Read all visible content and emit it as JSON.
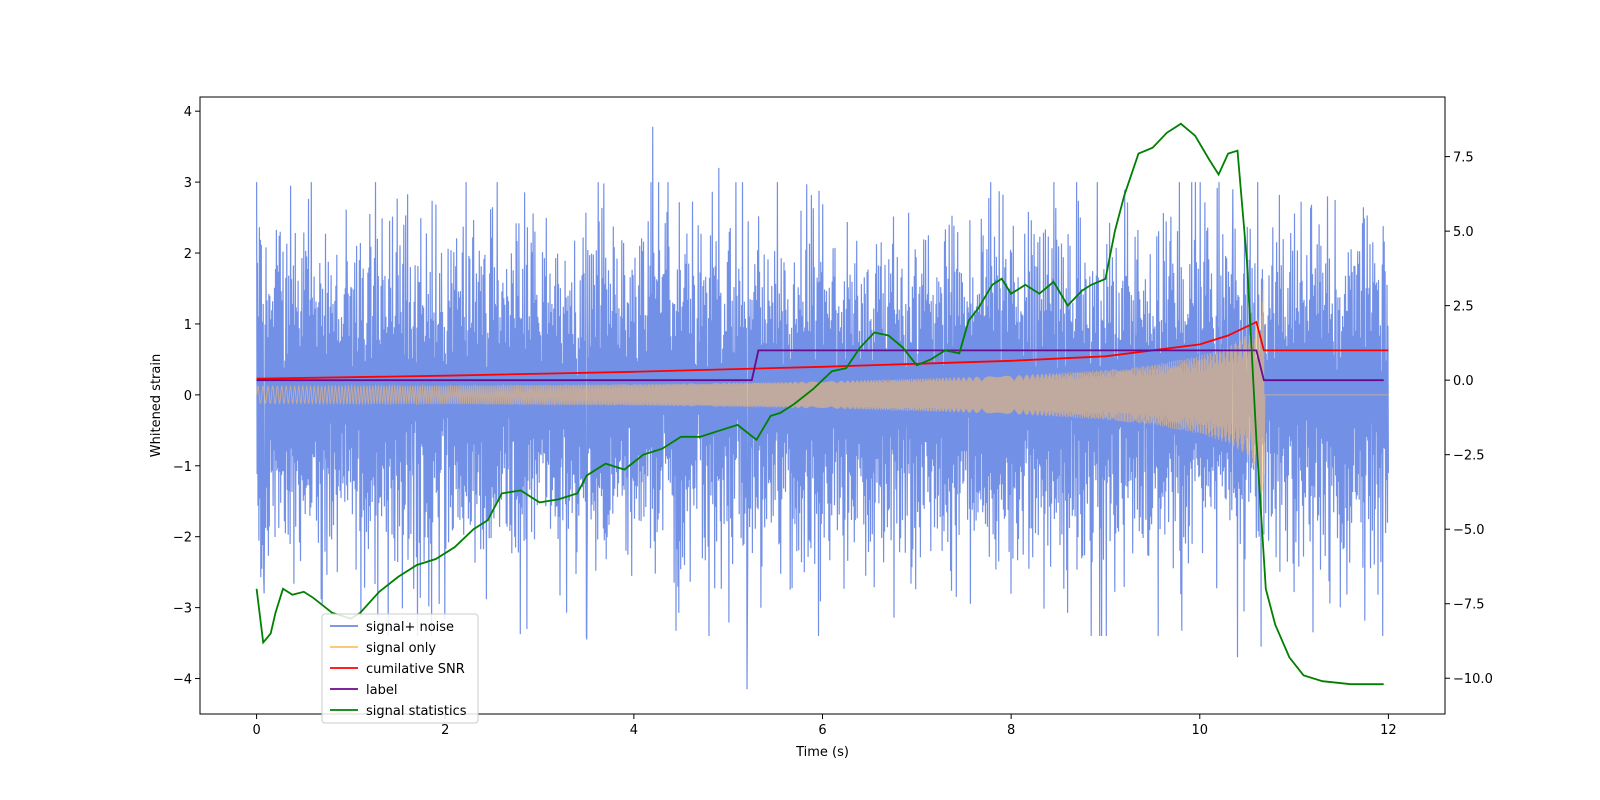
{
  "chart_data": {
    "type": "line",
    "xlabel": "Time (s)",
    "ylabel": "Whitened strain",
    "xlim": [
      -0.6,
      12.6
    ],
    "ylim": [
      -4.5,
      4.2
    ],
    "y2lim": [
      -11.2,
      9.5
    ],
    "x_ticks": [
      0,
      2,
      4,
      6,
      8,
      10,
      12
    ],
    "x_tick_labels": [
      "0",
      "2",
      "4",
      "6",
      "8",
      "10",
      "12"
    ],
    "y_ticks": [
      -4,
      -3,
      -2,
      -1,
      0,
      1,
      2,
      3,
      4
    ],
    "y_tick_labels": [
      "−4",
      "−3",
      "−2",
      "−1",
      "0",
      "1",
      "2",
      "3",
      "4"
    ],
    "y2_ticks": [
      -10.0,
      -7.5,
      -5.0,
      -2.5,
      0.0,
      2.5,
      5.0,
      7.5
    ],
    "y2_tick_labels": [
      "−10.0",
      "−7.5",
      "−5.0",
      "−2.5",
      "0.0",
      "2.5",
      "5.0",
      "7.5"
    ],
    "legend_position": "lower-left",
    "series": [
      {
        "name": "signal+ noise",
        "color": "#6b8ae6",
        "axis": "left",
        "description_values": {
          "x_range": [
            0,
            12
          ],
          "approx_amplitude": 1.4,
          "peak": 3.8,
          "trough": -4.15
        },
        "highlight_points": [
          [
            0.08,
            -2.8
          ],
          [
            1.2,
            2.55
          ],
          [
            4.2,
            3.78
          ],
          [
            5.2,
            -4.15
          ],
          [
            4.9,
            3.2
          ],
          [
            10.35,
            2.9
          ],
          [
            10.4,
            -3.7
          ],
          [
            10.65,
            -3.55
          ],
          [
            11.2,
            -3.35
          ],
          [
            3.5,
            -3.45
          ]
        ]
      },
      {
        "name": "signal only",
        "color": "#ffbf66",
        "axis": "left",
        "envelope_x": [
          0,
          2,
          4,
          6,
          8,
          9,
          9.5,
          10,
          10.3,
          10.5,
          10.62,
          10.68
        ],
        "envelope_y": [
          0.12,
          0.13,
          0.15,
          0.19,
          0.27,
          0.35,
          0.42,
          0.55,
          0.68,
          0.85,
          1.1,
          1.7
        ],
        "x_end": 10.68
      },
      {
        "name": "cumilative SNR",
        "color": "#ff0000",
        "axis": "right",
        "x": [
          0,
          2,
          4,
          6,
          8,
          9,
          10,
          10.3,
          10.6,
          10.68,
          12
        ],
        "y": [
          0.05,
          0.15,
          0.28,
          0.45,
          0.65,
          0.8,
          1.2,
          1.5,
          1.95,
          1.0,
          1.0
        ]
      },
      {
        "name": "label",
        "color": "#6a0a8c",
        "axis": "right",
        "x": [
          0,
          5.25,
          5.32,
          10.6,
          10.68,
          11.95
        ],
        "y": [
          0.0,
          0.0,
          1.0,
          1.0,
          0.0,
          0.0
        ]
      },
      {
        "name": "signal statistics",
        "color": "#008000",
        "axis": "right",
        "x": [
          0,
          0.07,
          0.15,
          0.2,
          0.28,
          0.38,
          0.5,
          0.6,
          0.8,
          1.0,
          1.1,
          1.3,
          1.5,
          1.7,
          1.9,
          2.1,
          2.3,
          2.45,
          2.6,
          2.8,
          3.0,
          3.2,
          3.4,
          3.5,
          3.7,
          3.9,
          4.1,
          4.3,
          4.5,
          4.7,
          4.9,
          5.1,
          5.3,
          5.45,
          5.55,
          5.7,
          5.9,
          6.1,
          6.25,
          6.4,
          6.55,
          6.7,
          6.85,
          7.0,
          7.15,
          7.3,
          7.45,
          7.55,
          7.65,
          7.8,
          7.9,
          8.0,
          8.15,
          8.3,
          8.45,
          8.6,
          8.75,
          8.85,
          9.0,
          9.1,
          9.2,
          9.35,
          9.5,
          9.65,
          9.8,
          9.95,
          10.1,
          10.2,
          10.3,
          10.4,
          10.5,
          10.6,
          10.7,
          10.8,
          10.95,
          11.1,
          11.3,
          11.6,
          11.95
        ],
        "y": [
          -7.0,
          -8.8,
          -8.5,
          -7.8,
          -7.0,
          -7.2,
          -7.1,
          -7.3,
          -7.8,
          -8.0,
          -7.8,
          -7.1,
          -6.6,
          -6.2,
          -6.0,
          -5.6,
          -5.0,
          -4.7,
          -3.8,
          -3.7,
          -4.1,
          -4.0,
          -3.8,
          -3.2,
          -2.8,
          -3.0,
          -2.5,
          -2.3,
          -1.9,
          -1.9,
          -1.7,
          -1.5,
          -2.0,
          -1.2,
          -1.1,
          -0.8,
          -0.3,
          0.3,
          0.4,
          1.1,
          1.6,
          1.5,
          1.1,
          0.5,
          0.7,
          1.0,
          0.9,
          2.0,
          2.4,
          3.2,
          3.4,
          2.9,
          3.2,
          2.9,
          3.3,
          2.5,
          3.0,
          3.2,
          3.4,
          5.0,
          6.2,
          7.6,
          7.8,
          8.3,
          8.6,
          8.2,
          7.4,
          6.9,
          7.6,
          7.7,
          4.0,
          -2.0,
          -7.0,
          -8.2,
          -9.3,
          -9.9,
          -10.1,
          -10.2,
          -10.2
        ]
      }
    ]
  }
}
